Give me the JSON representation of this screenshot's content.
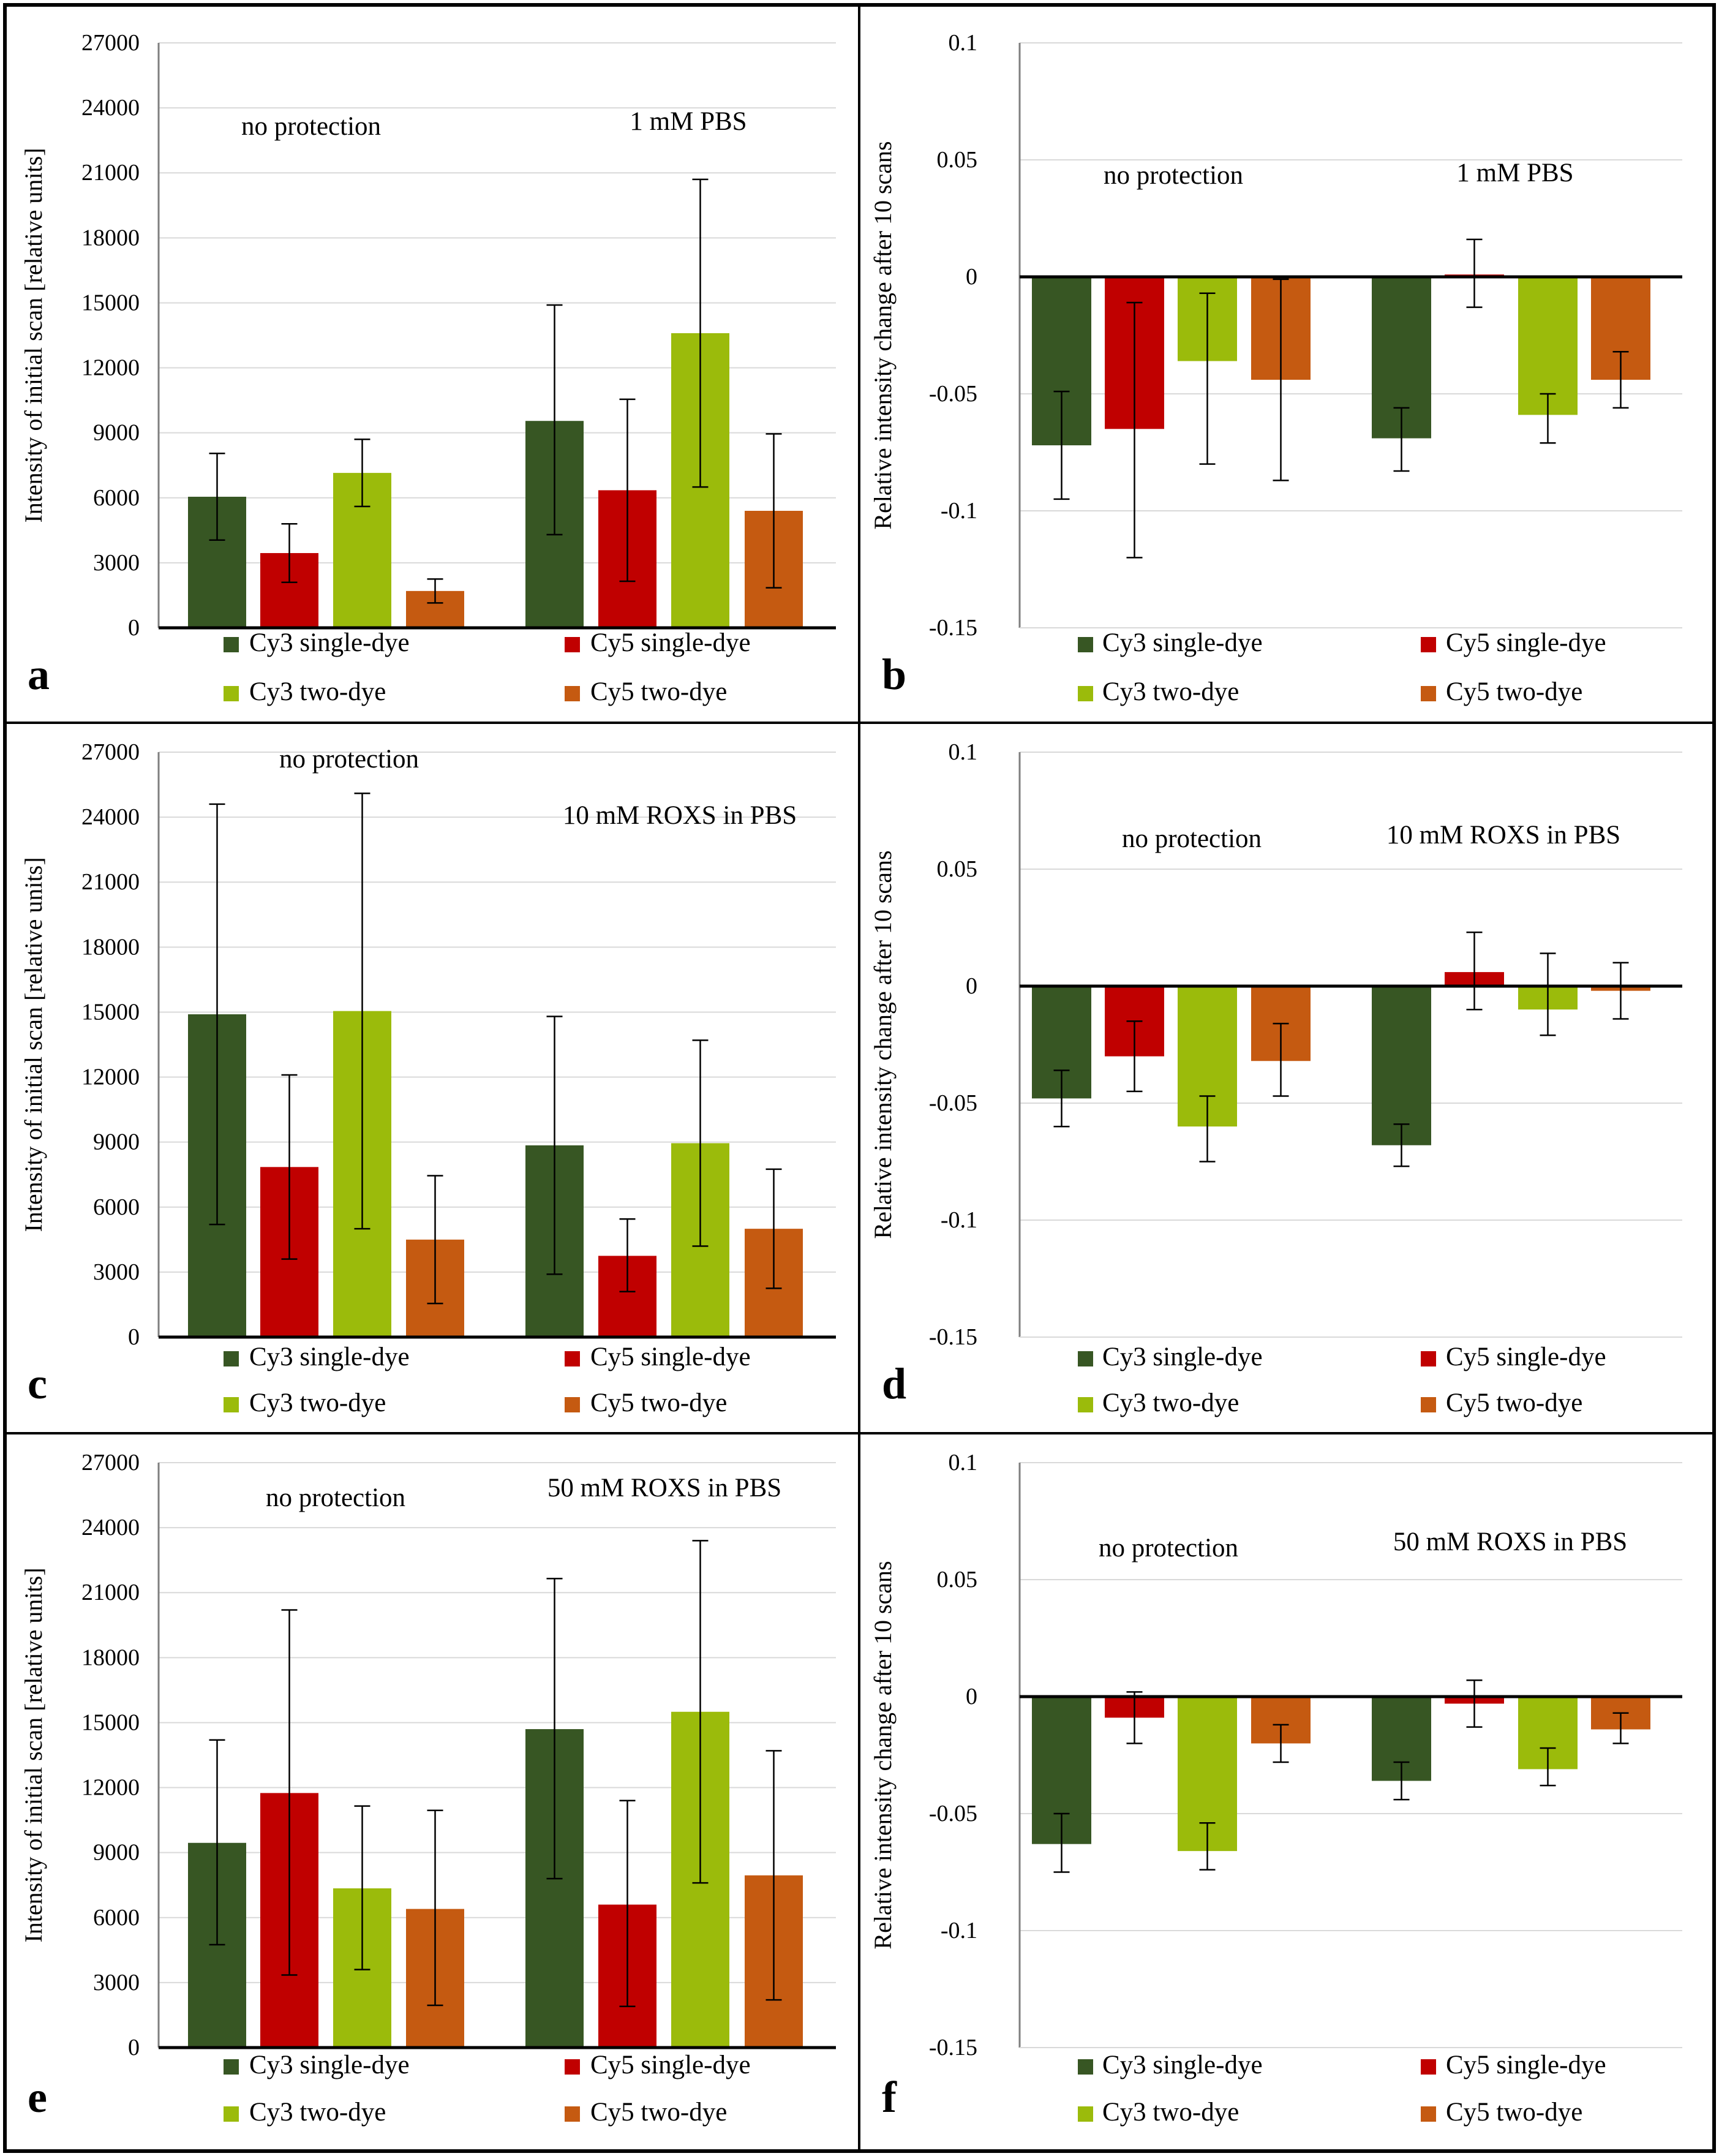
{
  "figure": {
    "series_colors": [
      "#375623",
      "#c00000",
      "#9bbb0b",
      "#c55a11"
    ],
    "legend": [
      "Cy3 single-dye",
      "Cy5 single-dye",
      "Cy3 two-dye",
      "Cy5 two-dye"
    ]
  },
  "chart_data": [
    {
      "panel": "a",
      "type": "bar",
      "categories": [
        "no protection",
        "1 mM PBS"
      ],
      "ylabel": "Intensity of initial scan [relative units]",
      "ylim": [
        0,
        27000
      ],
      "yticks": [
        0,
        3000,
        6000,
        9000,
        12000,
        15000,
        18000,
        21000,
        24000,
        27000
      ],
      "ytick_labels": [
        "0",
        "3000",
        "6000",
        "9000",
        "12000",
        "15000",
        "18000",
        "21000",
        "24000",
        "27000"
      ],
      "series": [
        {
          "name": "Cy3 single-dye",
          "values": [
            6050,
            9550
          ],
          "err_low": [
            4050,
            4300
          ],
          "err_high": [
            8050,
            14900
          ]
        },
        {
          "name": "Cy5 single-dye",
          "values": [
            3450,
            6350
          ],
          "err_low": [
            2100,
            2150
          ],
          "err_high": [
            4800,
            10550
          ]
        },
        {
          "name": "Cy3 two-dye",
          "values": [
            7150,
            13600
          ],
          "err_low": [
            5600,
            6500
          ],
          "err_high": [
            8700,
            20700
          ]
        },
        {
          "name": "Cy5 two-dye",
          "values": [
            1700,
            5400
          ],
          "err_low": [
            1150,
            1850
          ],
          "err_high": [
            2250,
            8950
          ]
        }
      ]
    },
    {
      "panel": "b",
      "type": "bar",
      "categories": [
        "no protection",
        "1 mM PBS"
      ],
      "ylabel": "Relative intensity change after 10  scans",
      "ylim": [
        -0.15,
        0.1
      ],
      "yticks": [
        -0.15,
        -0.1,
        -0.05,
        0,
        0.05,
        0.1
      ],
      "ytick_labels": [
        "-0.15",
        "-0.1",
        "-0.05",
        "0",
        "0.05",
        "0.1"
      ],
      "series": [
        {
          "name": "Cy3 single-dye",
          "values": [
            -0.072,
            -0.069
          ],
          "err_low": [
            -0.095,
            -0.083
          ],
          "err_high": [
            -0.049,
            -0.056
          ]
        },
        {
          "name": "Cy5 single-dye",
          "values": [
            -0.065,
            0.001
          ],
          "err_low": [
            -0.12,
            -0.013
          ],
          "err_high": [
            -0.011,
            0.016
          ]
        },
        {
          "name": "Cy3 two-dye",
          "values": [
            -0.036,
            -0.059
          ],
          "err_low": [
            -0.08,
            -0.071
          ],
          "err_high": [
            -0.007,
            -0.05
          ]
        },
        {
          "name": "Cy5 two-dye",
          "values": [
            -0.044,
            -0.044
          ],
          "err_low": [
            -0.087,
            -0.056
          ],
          "err_high": [
            -0.001,
            -0.032
          ]
        }
      ]
    },
    {
      "panel": "c",
      "type": "bar",
      "categories": [
        "no protection",
        "10 mM ROXS in PBS"
      ],
      "ylabel": "Intensity of initial scan [relative units]",
      "ylim": [
        0,
        27000
      ],
      "yticks": [
        0,
        3000,
        6000,
        9000,
        12000,
        15000,
        18000,
        21000,
        24000,
        27000
      ],
      "ytick_labels": [
        "0",
        "3000",
        "6000",
        "9000",
        "12000",
        "15000",
        "18000",
        "21000",
        "24000",
        "27000"
      ],
      "series": [
        {
          "name": "Cy3 single-dye",
          "values": [
            14900,
            8850
          ],
          "err_low": [
            5200,
            2900
          ],
          "err_high": [
            24600,
            14800
          ]
        },
        {
          "name": "Cy5 single-dye",
          "values": [
            7850,
            3750
          ],
          "err_low": [
            3600,
            2100
          ],
          "err_high": [
            12100,
            5450
          ]
        },
        {
          "name": "Cy3 two-dye",
          "values": [
            15050,
            8950
          ],
          "err_low": [
            5000,
            4200
          ],
          "err_high": [
            25100,
            13700
          ]
        },
        {
          "name": "Cy5 two-dye",
          "values": [
            4500,
            5000
          ],
          "err_low": [
            1550,
            2250
          ],
          "err_high": [
            7450,
            7750
          ]
        }
      ]
    },
    {
      "panel": "d",
      "type": "bar",
      "categories": [
        "no protection",
        "10 mM ROXS in PBS"
      ],
      "ylabel": "Relative intensity change after 10  scans",
      "ylim": [
        -0.15,
        0.1
      ],
      "yticks": [
        -0.15,
        -0.1,
        -0.05,
        0,
        0.05,
        0.1
      ],
      "ytick_labels": [
        "-0.15",
        "-0.1",
        "-0.05",
        "0",
        "0.05",
        "0.1"
      ],
      "series": [
        {
          "name": "Cy3 single-dye",
          "values": [
            -0.048,
            -0.068
          ],
          "err_low": [
            -0.06,
            -0.077
          ],
          "err_high": [
            -0.036,
            -0.059
          ]
        },
        {
          "name": "Cy5 single-dye",
          "values": [
            -0.03,
            0.006
          ],
          "err_low": [
            -0.045,
            -0.01
          ],
          "err_high": [
            -0.015,
            0.023
          ]
        },
        {
          "name": "Cy3 two-dye",
          "values": [
            -0.06,
            -0.01
          ],
          "err_low": [
            -0.075,
            -0.021
          ],
          "err_high": [
            -0.047,
            0.014
          ]
        },
        {
          "name": "Cy5 two-dye",
          "values": [
            -0.032,
            -0.002
          ],
          "err_low": [
            -0.047,
            -0.014
          ],
          "err_high": [
            -0.016,
            0.01
          ]
        }
      ]
    },
    {
      "panel": "e",
      "type": "bar",
      "categories": [
        "no protection",
        "50 mM ROXS in PBS"
      ],
      "ylabel": "Intensity of initial scan [relative units]",
      "ylim": [
        0,
        27000
      ],
      "yticks": [
        0,
        3000,
        6000,
        9000,
        12000,
        15000,
        18000,
        21000,
        24000,
        27000
      ],
      "ytick_labels": [
        "0",
        "3000",
        "6000",
        "9000",
        "12000",
        "15000",
        "18000",
        "21000",
        "24000",
        "27000"
      ],
      "series": [
        {
          "name": "Cy3 single-dye",
          "values": [
            9450,
            14700
          ],
          "err_low": [
            4750,
            7800
          ],
          "err_high": [
            14200,
            21650
          ]
        },
        {
          "name": "Cy5 single-dye",
          "values": [
            11750,
            6600
          ],
          "err_low": [
            3350,
            1900
          ],
          "err_high": [
            20200,
            11400
          ]
        },
        {
          "name": "Cy3 two-dye",
          "values": [
            7350,
            15500
          ],
          "err_low": [
            3600,
            7600
          ],
          "err_high": [
            11150,
            23400
          ]
        },
        {
          "name": "Cy5 two-dye",
          "values": [
            6400,
            7950
          ],
          "err_low": [
            1950,
            2200
          ],
          "err_high": [
            10950,
            13700
          ]
        }
      ]
    },
    {
      "panel": "f",
      "type": "bar",
      "categories": [
        "no protection",
        "50 mM ROXS in PBS"
      ],
      "ylabel": "Relative intensity change after 10  scans",
      "ylim": [
        -0.15,
        0.1
      ],
      "yticks": [
        -0.15,
        -0.1,
        -0.05,
        0,
        0.05,
        0.1
      ],
      "ytick_labels": [
        "-0.15",
        "-0.1",
        "-0.05",
        "0",
        "0.05",
        "0.1"
      ],
      "series": [
        {
          "name": "Cy3 single-dye",
          "values": [
            -0.063,
            -0.036
          ],
          "err_low": [
            -0.075,
            -0.044
          ],
          "err_high": [
            -0.05,
            -0.028
          ]
        },
        {
          "name": "Cy5 single-dye",
          "values": [
            -0.009,
            -0.003
          ],
          "err_low": [
            -0.02,
            -0.013
          ],
          "err_high": [
            0.002,
            0.007
          ]
        },
        {
          "name": "Cy3 two-dye",
          "values": [
            -0.066,
            -0.031
          ],
          "err_low": [
            -0.074,
            -0.038
          ],
          "err_high": [
            -0.054,
            -0.022
          ]
        },
        {
          "name": "Cy5 two-dye",
          "values": [
            -0.02,
            -0.014
          ],
          "err_low": [
            -0.028,
            -0.02
          ],
          "err_high": [
            -0.012,
            -0.007
          ]
        }
      ]
    }
  ]
}
